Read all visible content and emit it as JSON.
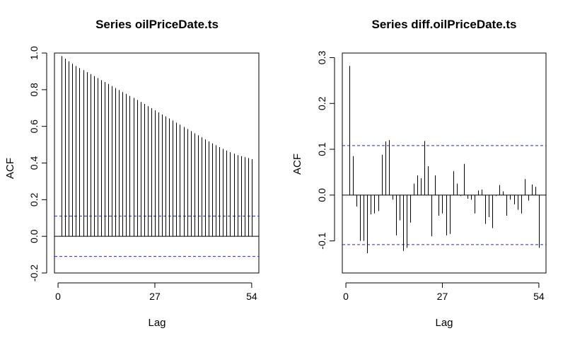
{
  "chart_data": [
    {
      "type": "bar",
      "title": "Series  oilPriceDate.ts",
      "xlabel": "Lag",
      "ylabel": "ACF",
      "xlim": [
        -1,
        56
      ],
      "ylim": [
        -0.2,
        1.0
      ],
      "x_ticks": [
        0,
        27,
        54
      ],
      "y_ticks": [
        -0.2,
        0.0,
        0.2,
        0.4,
        0.6,
        0.8,
        1.0
      ],
      "y_tick_labels": [
        "-0.2",
        "0.0",
        "0.2",
        "0.4",
        "0.6",
        "0.8",
        "1.0"
      ],
      "confidence_bound": 0.11,
      "lags": [
        1,
        2,
        3,
        4,
        5,
        6,
        7,
        8,
        9,
        10,
        11,
        12,
        13,
        14,
        15,
        16,
        17,
        18,
        19,
        20,
        21,
        22,
        23,
        24,
        25,
        26,
        27,
        28,
        29,
        30,
        31,
        32,
        33,
        34,
        35,
        36,
        37,
        38,
        39,
        40,
        41,
        42,
        43,
        44,
        45,
        46,
        47,
        48,
        49,
        50,
        51,
        52,
        53,
        54
      ],
      "values": [
        0.983,
        0.969,
        0.955,
        0.941,
        0.929,
        0.918,
        0.907,
        0.896,
        0.885,
        0.874,
        0.863,
        0.852,
        0.842,
        0.831,
        0.82,
        0.809,
        0.798,
        0.787,
        0.777,
        0.766,
        0.755,
        0.744,
        0.733,
        0.722,
        0.71,
        0.699,
        0.688,
        0.676,
        0.665,
        0.654,
        0.643,
        0.632,
        0.62,
        0.609,
        0.597,
        0.585,
        0.574,
        0.562,
        0.551,
        0.54,
        0.529,
        0.518,
        0.507,
        0.497,
        0.487,
        0.477,
        0.468,
        0.459,
        0.451,
        0.443,
        0.437,
        0.432,
        0.427,
        0.421
      ],
      "grid": false,
      "legend": "none"
    },
    {
      "type": "bar",
      "title": "Series  diff.oilPriceDate.ts",
      "xlabel": "Lag",
      "ylabel": "ACF",
      "xlim": [
        -1,
        56
      ],
      "ylim": [
        -0.17,
        0.31
      ],
      "x_ticks": [
        0,
        27,
        54
      ],
      "y_ticks": [
        -0.1,
        0.0,
        0.1,
        0.2,
        0.3
      ],
      "y_tick_labels": [
        "-0.1",
        "0.0",
        "0.1",
        "0.2",
        "0.3"
      ],
      "confidence_bound": 0.108,
      "lags": [
        1,
        2,
        3,
        4,
        5,
        6,
        7,
        8,
        9,
        10,
        11,
        12,
        13,
        14,
        15,
        16,
        17,
        18,
        19,
        20,
        21,
        22,
        23,
        24,
        25,
        26,
        27,
        28,
        29,
        30,
        31,
        32,
        33,
        34,
        35,
        36,
        37,
        38,
        39,
        40,
        41,
        42,
        43,
        44,
        45,
        46,
        47,
        48,
        49,
        50,
        51,
        52,
        53,
        54
      ],
      "values": [
        0.282,
        0.085,
        -0.025,
        -0.1,
        -0.1,
        -0.127,
        -0.042,
        -0.04,
        -0.035,
        0.088,
        0.117,
        0.12,
        -0.01,
        -0.088,
        -0.055,
        -0.122,
        -0.115,
        -0.06,
        0.025,
        0.043,
        0.037,
        0.118,
        0.063,
        -0.09,
        0.043,
        -0.045,
        -0.04,
        -0.088,
        -0.085,
        0.052,
        0.025,
        -0.002,
        0.068,
        -0.008,
        -0.01,
        -0.04,
        0.01,
        0.012,
        -0.063,
        -0.048,
        -0.072,
        -0.002,
        0.022,
        0.008,
        -0.045,
        -0.01,
        -0.02,
        -0.032,
        -0.04,
        0.035,
        -0.012,
        0.023,
        0.018,
        -0.115
      ],
      "grid": false,
      "legend": "none"
    }
  ]
}
